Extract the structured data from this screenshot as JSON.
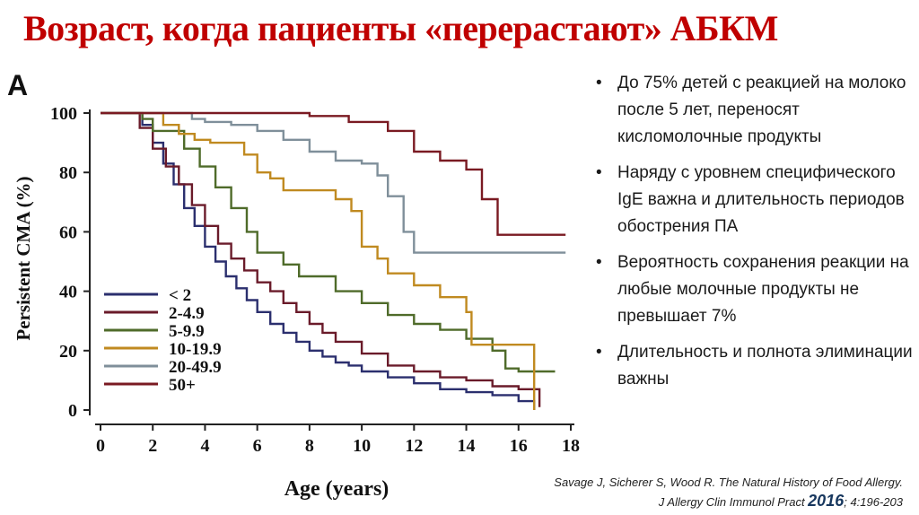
{
  "slide": {
    "title": "Возраст, когда пациенты «перерастают» АБКМ",
    "bullets": [
      "До 75% детей с реакцией на молоко после 5 лет, переносят кисломолочные продукты",
      "Наряду с уровнем специфического IgE важна и длительность периодов обострения ПА",
      "Вероятность сохранения реакции на любые молочные продукты не превышает 7%",
      "Длительность и полнота элиминации важны"
    ],
    "citation_line1": "Savage J, Sicherer S, Wood R. The Natural History of Food Allergy.",
    "citation_journal": "J Allergy Clin Immunol Pract ",
    "citation_year": "2016",
    "citation_tail": "; 4:196-203"
  },
  "chart_data": {
    "type": "line",
    "panel_label": "A",
    "title": "",
    "xlabel": "Age (years)",
    "ylabel": "Persistent CMA (%)",
    "xlim": [
      0,
      18
    ],
    "ylim": [
      0,
      100
    ],
    "x_ticks": [
      "0",
      "2",
      "4",
      "6",
      "8",
      "10",
      "12",
      "14",
      "16",
      "18"
    ],
    "y_ticks": [
      "0",
      "20",
      "40",
      "60",
      "80",
      "100"
    ],
    "legend_position": "bottom-left",
    "series": [
      {
        "name": "< 2",
        "color": "#2b2f6e",
        "x": [
          0,
          1.2,
          1.6,
          2.0,
          2.4,
          2.8,
          3.2,
          3.6,
          4.0,
          4.4,
          4.8,
          5.2,
          5.6,
          6.0,
          6.5,
          7.0,
          7.5,
          8.0,
          8.5,
          9.0,
          9.5,
          10.0,
          11.0,
          12.0,
          13.0,
          14.0,
          15.0,
          16.0,
          16.6,
          16.6
        ],
        "y": [
          100,
          100,
          96,
          90,
          83,
          76,
          68,
          62,
          55,
          50,
          45,
          41,
          37,
          33,
          29,
          26,
          23,
          20,
          18,
          16,
          15,
          13,
          11,
          9,
          7,
          6,
          5,
          3,
          2,
          0
        ]
      },
      {
        "name": "2-4.9",
        "color": "#6a1b2a",
        "x": [
          0,
          1.0,
          1.5,
          2.0,
          2.5,
          3.0,
          3.5,
          4.0,
          4.5,
          5.0,
          5.5,
          6.0,
          6.5,
          7.0,
          7.5,
          8.0,
          8.5,
          9.0,
          10.0,
          11.0,
          12.0,
          13.0,
          14.0,
          15.0,
          16.0,
          16.8,
          16.8
        ],
        "y": [
          100,
          100,
          95,
          88,
          82,
          76,
          69,
          62,
          56,
          51,
          47,
          43,
          40,
          36,
          33,
          29,
          26,
          23,
          19,
          15,
          13,
          11,
          10,
          8,
          7,
          5,
          1
        ]
      },
      {
        "name": "5-9.9",
        "color": "#4f6b2a",
        "x": [
          0,
          1.0,
          1.6,
          2.0,
          2.6,
          3.2,
          3.8,
          4.4,
          5.0,
          5.6,
          6.0,
          7.0,
          7.6,
          8.0,
          9.0,
          10.0,
          11.0,
          12.0,
          13.0,
          14.0,
          15.0,
          15.5,
          16.0,
          17.0,
          17.4
        ],
        "y": [
          100,
          100,
          98,
          94,
          94,
          88,
          82,
          75,
          68,
          60,
          53,
          49,
          45,
          45,
          40,
          36,
          32,
          29,
          27,
          24,
          20,
          14,
          13,
          13,
          13
        ]
      },
      {
        "name": "10-19.9",
        "color": "#c08a20",
        "x": [
          0,
          1.8,
          2.4,
          3.0,
          3.6,
          4.2,
          5.0,
          5.5,
          6.0,
          6.5,
          7.0,
          8.0,
          9.0,
          9.6,
          10.0,
          10.6,
          11.0,
          12.0,
          13.0,
          14.0,
          14.2,
          16.2,
          16.6,
          16.6
        ],
        "y": [
          100,
          100,
          96,
          93,
          91,
          90,
          90,
          86,
          80,
          78,
          74,
          74,
          71,
          67,
          55,
          51,
          46,
          42,
          38,
          33,
          22,
          22,
          18,
          0
        ]
      },
      {
        "name": "20-49.9",
        "color": "#7f8f9a",
        "x": [
          0,
          2.5,
          3.5,
          4.0,
          5.0,
          6.0,
          7.0,
          8.0,
          9.0,
          10.0,
          10.6,
          11.0,
          11.6,
          12.0,
          14.0,
          16.0,
          17.8
        ],
        "y": [
          100,
          100,
          98,
          97,
          96,
          94,
          91,
          87,
          84,
          83,
          79,
          72,
          60,
          53,
          53,
          53,
          53
        ]
      },
      {
        "name": "50+",
        "color": "#7a1a22",
        "x": [
          0,
          4.0,
          5.0,
          6.0,
          8.0,
          9.5,
          11.0,
          12.0,
          13.0,
          14.0,
          14.6,
          15.2,
          17.8
        ],
        "y": [
          100,
          100,
          100,
          100,
          99,
          97,
          94,
          87,
          84,
          81,
          71,
          59,
          59
        ]
      }
    ]
  }
}
